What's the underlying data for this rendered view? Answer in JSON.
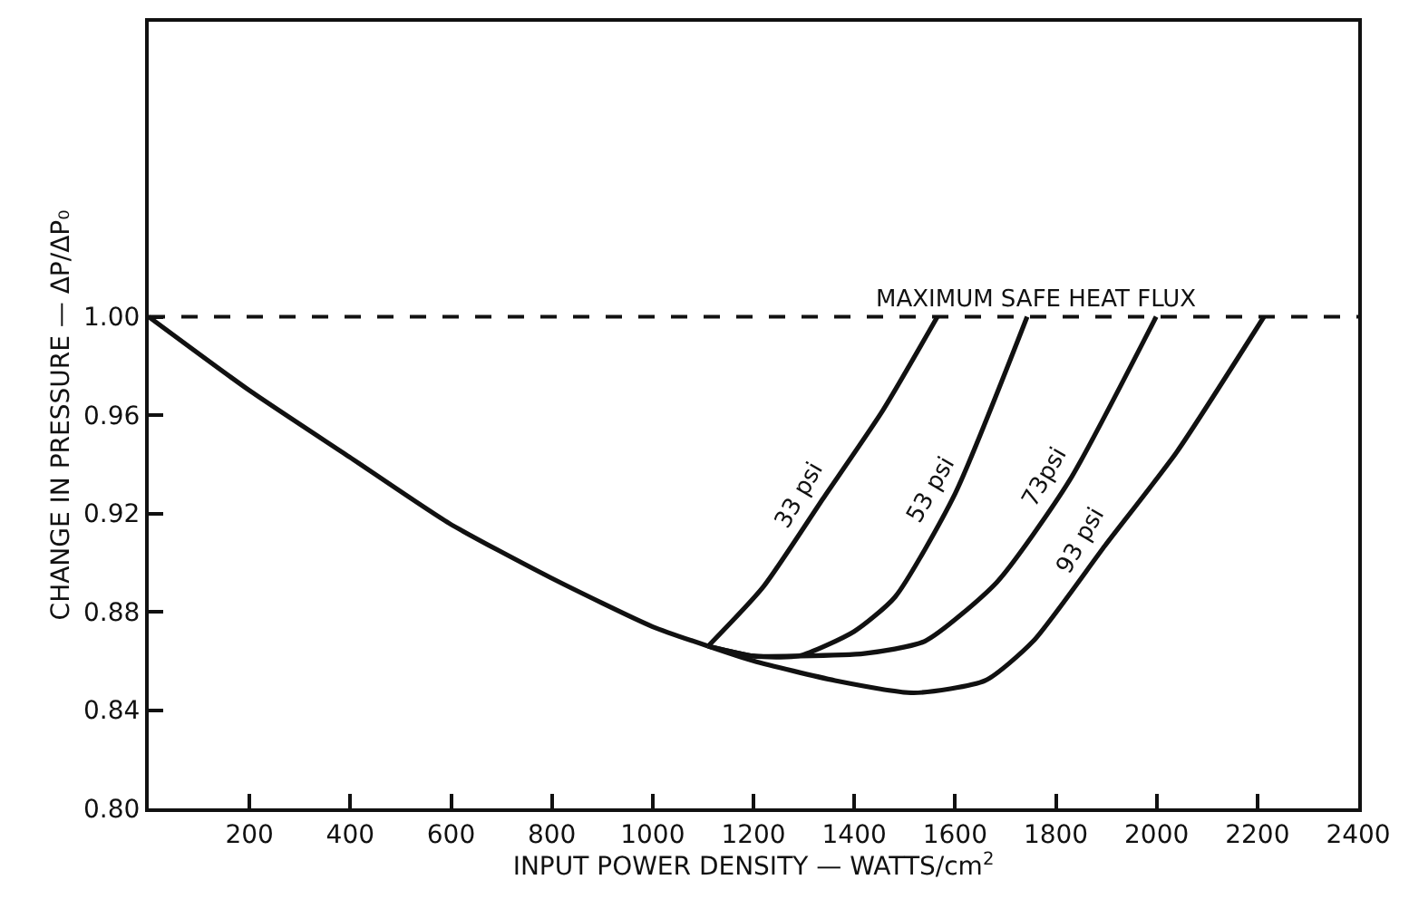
{
  "chart_data": {
    "type": "line",
    "xlabel": "INPUT POWER DENSITY — WATTS/cm$^{2}$",
    "ylabel": "CHANGE IN PRESSURE — ΔP/ΔP₀",
    "xlim": [
      0,
      2400
    ],
    "xticks": [
      200,
      400,
      600,
      800,
      1000,
      1200,
      1400,
      1600,
      1800,
      2000,
      2200,
      2400
    ],
    "ylim": [
      0.8,
      1.12
    ],
    "yticks": [
      {
        "value": 0.8,
        "label": "0.80"
      },
      {
        "value": 0.84,
        "label": "0.84"
      },
      {
        "value": 0.88,
        "label": "0.88"
      },
      {
        "value": 0.92,
        "label": "0.92"
      },
      {
        "value": 0.96,
        "label": "0.96"
      },
      {
        "value": 1.0,
        "label": "1.00"
      }
    ],
    "legend": false,
    "marker": "none",
    "line_style": "solid",
    "ref_lines": [
      {
        "axis": "y",
        "value": 1.0,
        "label": "MAXIMUM SAFE HEAT FLUX",
        "color": "#111111",
        "line_style": "dashed"
      }
    ],
    "series": [
      {
        "color": "#111111",
        "x": [
          0,
          200,
          398,
          596,
          796,
          999,
          1110
        ],
        "values": [
          1.0,
          0.97,
          0.943,
          0.916,
          0.894,
          0.874,
          0.866
        ]
      },
      {
        "name": "33 psi",
        "color": "#111111",
        "x": [
          1110,
          1219,
          1338,
          1457,
          1565
        ],
        "values": [
          0.866,
          0.89,
          0.926,
          0.962,
          1.0
        ]
      },
      {
        "name": "53 psi",
        "color": "#111111",
        "x": [
          1110,
          1200,
          1290,
          1400,
          1481,
          1600,
          1743
        ],
        "values": [
          0.866,
          0.862,
          0.862,
          0.872,
          0.886,
          0.928,
          1.0
        ]
      },
      {
        "name": "73psi",
        "color": "#111111",
        "x": [
          1110,
          1200,
          1290,
          1420,
          1540,
          1683,
          1826,
          1999
        ],
        "values": [
          0.866,
          0.862,
          0.862,
          0.863,
          0.868,
          0.892,
          0.933,
          1.0
        ]
      },
      {
        "name": "93 psi",
        "color": "#111111",
        "x": [
          1110,
          1200,
          1362,
          1518,
          1660,
          1755,
          1898,
          2040,
          2213
        ],
        "values": [
          0.866,
          0.86,
          0.852,
          0.847,
          0.852,
          0.868,
          0.907,
          0.945,
          1.0
        ]
      }
    ]
  }
}
